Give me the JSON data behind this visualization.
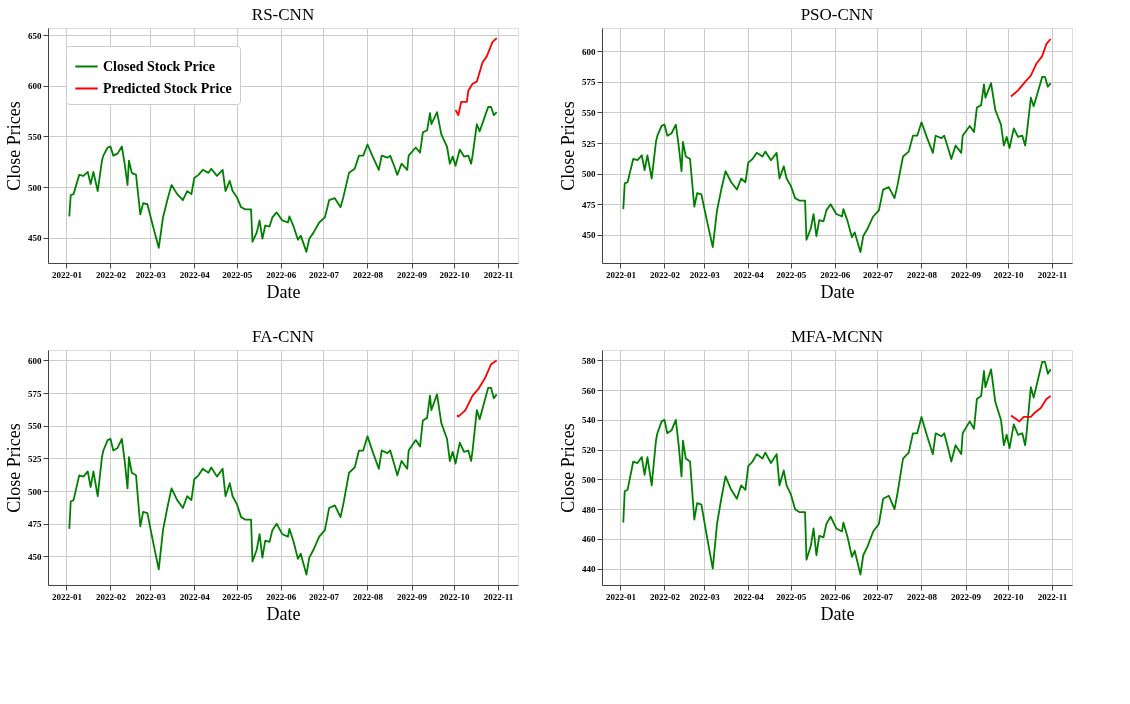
{
  "chart_data": [
    {
      "type": "line",
      "title": "RS-CNN",
      "xlabel": "Date",
      "ylabel": "Close Prices",
      "grid": true,
      "legend": "top left",
      "xlim": [
        "2021-12-19",
        "2022-11-15"
      ],
      "xticks": [
        "2022-01",
        "2022-02",
        "2022-03",
        "2022-04",
        "2022-05",
        "2022-06",
        "2022-07",
        "2022-08",
        "2022-09",
        "2022-10",
        "2022-11"
      ],
      "ylim": [
        425,
        657
      ],
      "yticks": [
        450,
        500,
        550,
        600,
        650
      ],
      "x": [
        "2022-01-03",
        "2022-01-04",
        "2022-01-06",
        "2022-01-10",
        "2022-01-13",
        "2022-01-16",
        "2022-01-18",
        "2022-01-20",
        "2022-01-23",
        "2022-01-26",
        "2022-01-27",
        "2022-01-30",
        "2022-02-01",
        "2022-02-03",
        "2022-02-06",
        "2022-02-09",
        "2022-02-11",
        "2022-02-13",
        "2022-02-14",
        "2022-02-16",
        "2022-02-19",
        "2022-02-22",
        "2022-02-24",
        "2022-02-27",
        "2022-03-03",
        "2022-03-07",
        "2022-03-10",
        "2022-03-13",
        "2022-03-16",
        "2022-03-20",
        "2022-03-24",
        "2022-03-27",
        "2022-03-30",
        "2022-04-01",
        "2022-04-04",
        "2022-04-07",
        "2022-04-11",
        "2022-04-13",
        "2022-04-17",
        "2022-04-21",
        "2022-04-23",
        "2022-04-26",
        "2022-04-28",
        "2022-05-01",
        "2022-05-04",
        "2022-05-07",
        "2022-05-11",
        "2022-05-12",
        "2022-05-15",
        "2022-05-17",
        "2022-05-19",
        "2022-05-21",
        "2022-05-24",
        "2022-05-26",
        "2022-05-29",
        "2022-06-02",
        "2022-06-06",
        "2022-06-07",
        "2022-06-10",
        "2022-06-13",
        "2022-06-15",
        "2022-06-19",
        "2022-06-21",
        "2022-06-24",
        "2022-06-28",
        "2022-07-02",
        "2022-07-05",
        "2022-07-09",
        "2022-07-13",
        "2022-07-15",
        "2022-07-19",
        "2022-07-23",
        "2022-07-26",
        "2022-07-29",
        "2022-08-01",
        "2022-08-05",
        "2022-08-09",
        "2022-08-11",
        "2022-08-15",
        "2022-08-17",
        "2022-08-20",
        "2022-08-22",
        "2022-08-25",
        "2022-08-29",
        "2022-08-30",
        "2022-09-04",
        "2022-09-07",
        "2022-09-09",
        "2022-09-12",
        "2022-09-14",
        "2022-09-15",
        "2022-09-19",
        "2022-09-22",
        "2022-09-26",
        "2022-09-28",
        "2022-09-30",
        "2022-10-02",
        "2022-10-05",
        "2022-10-08",
        "2022-10-11",
        "2022-10-13",
        "2022-10-14",
        "2022-10-17",
        "2022-10-19",
        "2022-10-22",
        "2022-10-25",
        "2022-10-27",
        "2022-10-29",
        "2022-10-31"
      ],
      "series": [
        {
          "name": "Closed Stock Price",
          "color": "#008000",
          "values": [
            471,
            492,
            493,
            512,
            511,
            515,
            503,
            515,
            496,
            526,
            531,
            539,
            540,
            531,
            533,
            540,
            523,
            502,
            526,
            514,
            512,
            473,
            484,
            483,
            461,
            440,
            470,
            487,
            502,
            493,
            487,
            496,
            493,
            509,
            512,
            517,
            514,
            518,
            511,
            517,
            496,
            506,
            496,
            490,
            480,
            478,
            478,
            446,
            455,
            467,
            449,
            462,
            461,
            470,
            475,
            467,
            465,
            471,
            461,
            448,
            452,
            436,
            449,
            455,
            465,
            470,
            487,
            489,
            480,
            490,
            514,
            518,
            531,
            531,
            542,
            529,
            517,
            531,
            529,
            531,
            520,
            512,
            523,
            517,
            531,
            539,
            534,
            554,
            556,
            573,
            562,
            574,
            552,
            540,
            523,
            530,
            521,
            537,
            530,
            531,
            523,
            531,
            562,
            555,
            567,
            579,
            579,
            571,
            574
          ]
        },
        {
          "name": "Predicted Stock Price",
          "color": "#ff0000",
          "x": [
            "2022-10-02",
            "2022-10-04",
            "2022-10-06",
            "2022-10-10",
            "2022-10-11",
            "2022-10-14",
            "2022-10-17",
            "2022-10-21",
            "2022-10-24",
            "2022-10-28",
            "2022-10-31"
          ],
          "values": [
            576,
            571,
            584,
            584,
            595,
            602,
            604,
            623,
            629,
            643,
            647
          ]
        }
      ]
    },
    {
      "type": "line",
      "title": "PSO-CNN",
      "xlabel": "Date",
      "ylabel": "Close Prices",
      "grid": true,
      "xlim": [
        "2021-12-19",
        "2022-11-15"
      ],
      "xticks": [
        "2022-01",
        "2022-02",
        "2022-03",
        "2022-04",
        "2022-05",
        "2022-06",
        "2022-07",
        "2022-08",
        "2022-09",
        "2022-10",
        "2022-11"
      ],
      "ylim": [
        427,
        619
      ],
      "yticks": [
        450,
        475,
        500,
        525,
        550,
        575,
        600
      ],
      "x": [
        "2022-01-03",
        "2022-01-04",
        "2022-01-06",
        "2022-01-10",
        "2022-01-13",
        "2022-01-16",
        "2022-01-18",
        "2022-01-20",
        "2022-01-23",
        "2022-01-26",
        "2022-01-27",
        "2022-01-30",
        "2022-02-01",
        "2022-02-03",
        "2022-02-06",
        "2022-02-09",
        "2022-02-11",
        "2022-02-13",
        "2022-02-14",
        "2022-02-16",
        "2022-02-19",
        "2022-02-22",
        "2022-02-24",
        "2022-02-27",
        "2022-03-03",
        "2022-03-07",
        "2022-03-10",
        "2022-03-13",
        "2022-03-16",
        "2022-03-20",
        "2022-03-24",
        "2022-03-27",
        "2022-03-30",
        "2022-04-01",
        "2022-04-04",
        "2022-04-07",
        "2022-04-11",
        "2022-04-13",
        "2022-04-17",
        "2022-04-21",
        "2022-04-23",
        "2022-04-26",
        "2022-04-28",
        "2022-05-01",
        "2022-05-04",
        "2022-05-07",
        "2022-05-11",
        "2022-05-12",
        "2022-05-15",
        "2022-05-17",
        "2022-05-19",
        "2022-05-21",
        "2022-05-24",
        "2022-05-26",
        "2022-05-29",
        "2022-06-02",
        "2022-06-06",
        "2022-06-07",
        "2022-06-10",
        "2022-06-13",
        "2022-06-15",
        "2022-06-19",
        "2022-06-21",
        "2022-06-24",
        "2022-06-28",
        "2022-07-02",
        "2022-07-05",
        "2022-07-09",
        "2022-07-13",
        "2022-07-15",
        "2022-07-19",
        "2022-07-23",
        "2022-07-26",
        "2022-07-29",
        "2022-08-01",
        "2022-08-05",
        "2022-08-09",
        "2022-08-11",
        "2022-08-15",
        "2022-08-17",
        "2022-08-20",
        "2022-08-22",
        "2022-08-25",
        "2022-08-29",
        "2022-08-30",
        "2022-09-04",
        "2022-09-07",
        "2022-09-09",
        "2022-09-12",
        "2022-09-14",
        "2022-09-15",
        "2022-09-19",
        "2022-09-22",
        "2022-09-26",
        "2022-09-28",
        "2022-09-30",
        "2022-10-02",
        "2022-10-05",
        "2022-10-08",
        "2022-10-11",
        "2022-10-13",
        "2022-10-14",
        "2022-10-17",
        "2022-10-19",
        "2022-10-22",
        "2022-10-25",
        "2022-10-27",
        "2022-10-29",
        "2022-10-31"
      ],
      "series": [
        {
          "color": "#008000",
          "values": [
            471,
            492,
            493,
            512,
            511,
            515,
            503,
            515,
            496,
            526,
            531,
            539,
            540,
            531,
            533,
            540,
            523,
            502,
            526,
            514,
            512,
            473,
            484,
            483,
            461,
            440,
            470,
            487,
            502,
            493,
            487,
            496,
            493,
            509,
            512,
            517,
            514,
            518,
            511,
            517,
            496,
            506,
            496,
            490,
            480,
            478,
            478,
            446,
            455,
            467,
            449,
            462,
            461,
            470,
            475,
            467,
            465,
            471,
            461,
            448,
            452,
            436,
            449,
            455,
            465,
            470,
            487,
            489,
            480,
            490,
            514,
            518,
            531,
            531,
            542,
            529,
            517,
            531,
            529,
            531,
            520,
            512,
            523,
            517,
            531,
            539,
            534,
            554,
            556,
            573,
            562,
            574,
            552,
            540,
            523,
            530,
            521,
            537,
            530,
            531,
            523,
            531,
            562,
            555,
            567,
            579,
            579,
            571,
            574
          ]
        },
        {
          "color": "#ff0000",
          "x": [
            "2022-10-03",
            "2022-10-08",
            "2022-10-13",
            "2022-10-17",
            "2022-10-21",
            "2022-10-25",
            "2022-10-28",
            "2022-10-31"
          ],
          "values": [
            563,
            568,
            575,
            580,
            590,
            596,
            606,
            610
          ]
        }
      ]
    },
    {
      "type": "line",
      "title": "FA-CNN",
      "xlabel": "Date",
      "ylabel": "Close Prices",
      "grid": true,
      "xlim": [
        "2021-12-19",
        "2022-11-15"
      ],
      "xticks": [
        "2022-01",
        "2022-02",
        "2022-03",
        "2022-04",
        "2022-05",
        "2022-06",
        "2022-07",
        "2022-08",
        "2022-09",
        "2022-10",
        "2022-11"
      ],
      "ylim": [
        428,
        608
      ],
      "yticks": [
        450,
        475,
        500,
        525,
        550,
        575,
        600
      ],
      "x": [
        "2022-01-03",
        "2022-01-04",
        "2022-01-06",
        "2022-01-10",
        "2022-01-13",
        "2022-01-16",
        "2022-01-18",
        "2022-01-20",
        "2022-01-23",
        "2022-01-26",
        "2022-01-27",
        "2022-01-30",
        "2022-02-01",
        "2022-02-03",
        "2022-02-06",
        "2022-02-09",
        "2022-02-11",
        "2022-02-13",
        "2022-02-14",
        "2022-02-16",
        "2022-02-19",
        "2022-02-22",
        "2022-02-24",
        "2022-02-27",
        "2022-03-03",
        "2022-03-07",
        "2022-03-10",
        "2022-03-13",
        "2022-03-16",
        "2022-03-20",
        "2022-03-24",
        "2022-03-27",
        "2022-03-30",
        "2022-04-01",
        "2022-04-04",
        "2022-04-07",
        "2022-04-11",
        "2022-04-13",
        "2022-04-17",
        "2022-04-21",
        "2022-04-23",
        "2022-04-26",
        "2022-04-28",
        "2022-05-01",
        "2022-05-04",
        "2022-05-07",
        "2022-05-11",
        "2022-05-12",
        "2022-05-15",
        "2022-05-17",
        "2022-05-19",
        "2022-05-21",
        "2022-05-24",
        "2022-05-26",
        "2022-05-29",
        "2022-06-02",
        "2022-06-06",
        "2022-06-07",
        "2022-06-10",
        "2022-06-13",
        "2022-06-15",
        "2022-06-19",
        "2022-06-21",
        "2022-06-24",
        "2022-06-28",
        "2022-07-02",
        "2022-07-05",
        "2022-07-09",
        "2022-07-13",
        "2022-07-15",
        "2022-07-19",
        "2022-07-23",
        "2022-07-26",
        "2022-07-29",
        "2022-08-01",
        "2022-08-05",
        "2022-08-09",
        "2022-08-11",
        "2022-08-15",
        "2022-08-17",
        "2022-08-20",
        "2022-08-22",
        "2022-08-25",
        "2022-08-29",
        "2022-08-30",
        "2022-09-04",
        "2022-09-07",
        "2022-09-09",
        "2022-09-12",
        "2022-09-14",
        "2022-09-15",
        "2022-09-19",
        "2022-09-22",
        "2022-09-26",
        "2022-09-28",
        "2022-09-30",
        "2022-10-02",
        "2022-10-05",
        "2022-10-08",
        "2022-10-11",
        "2022-10-13",
        "2022-10-14",
        "2022-10-17",
        "2022-10-19",
        "2022-10-22",
        "2022-10-25",
        "2022-10-27",
        "2022-10-29",
        "2022-10-31"
      ],
      "series": [
        {
          "color": "#008000",
          "values": [
            471,
            492,
            493,
            512,
            511,
            515,
            503,
            515,
            496,
            526,
            531,
            539,
            540,
            531,
            533,
            540,
            523,
            502,
            526,
            514,
            512,
            473,
            484,
            483,
            461,
            440,
            470,
            487,
            502,
            493,
            487,
            496,
            493,
            509,
            512,
            517,
            514,
            518,
            511,
            517,
            496,
            506,
            496,
            490,
            480,
            478,
            478,
            446,
            455,
            467,
            449,
            462,
            461,
            470,
            475,
            467,
            465,
            471,
            461,
            448,
            452,
            436,
            449,
            455,
            465,
            470,
            487,
            489,
            480,
            490,
            514,
            518,
            531,
            531,
            542,
            529,
            517,
            531,
            529,
            531,
            520,
            512,
            523,
            517,
            531,
            539,
            534,
            554,
            556,
            573,
            562,
            574,
            552,
            540,
            523,
            530,
            521,
            537,
            530,
            531,
            523,
            531,
            562,
            555,
            567,
            579,
            579,
            571,
            574
          ]
        },
        {
          "color": "#ff0000",
          "x": [
            "2022-10-03",
            "2022-10-04",
            "2022-10-09",
            "2022-10-14",
            "2022-10-18",
            "2022-10-23",
            "2022-10-27",
            "2022-10-31"
          ],
          "values": [
            558,
            557,
            562,
            573,
            578,
            587,
            597,
            600
          ]
        }
      ]
    },
    {
      "type": "line",
      "title": "MFA-MCNN",
      "xlabel": "Date",
      "ylabel": "Close Prices",
      "grid": true,
      "xlim": [
        "2021-12-19",
        "2022-11-15"
      ],
      "xticks": [
        "2022-01",
        "2022-02",
        "2022-03",
        "2022-04",
        "2022-05",
        "2022-06",
        "2022-07",
        "2022-08",
        "2022-09",
        "2022-10",
        "2022-11"
      ],
      "ylim": [
        429,
        587
      ],
      "yticks": [
        440,
        460,
        480,
        500,
        520,
        540,
        560,
        580
      ],
      "x": [
        "2022-01-03",
        "2022-01-04",
        "2022-01-06",
        "2022-01-10",
        "2022-01-13",
        "2022-01-16",
        "2022-01-18",
        "2022-01-20",
        "2022-01-23",
        "2022-01-26",
        "2022-01-27",
        "2022-01-30",
        "2022-02-01",
        "2022-02-03",
        "2022-02-06",
        "2022-02-09",
        "2022-02-11",
        "2022-02-13",
        "2022-02-14",
        "2022-02-16",
        "2022-02-19",
        "2022-02-22",
        "2022-02-24",
        "2022-02-27",
        "2022-03-03",
        "2022-03-07",
        "2022-03-10",
        "2022-03-13",
        "2022-03-16",
        "2022-03-20",
        "2022-03-24",
        "2022-03-27",
        "2022-03-30",
        "2022-04-01",
        "2022-04-04",
        "2022-04-07",
        "2022-04-11",
        "2022-04-13",
        "2022-04-17",
        "2022-04-21",
        "2022-04-23",
        "2022-04-26",
        "2022-04-28",
        "2022-05-01",
        "2022-05-04",
        "2022-05-07",
        "2022-05-11",
        "2022-05-12",
        "2022-05-15",
        "2022-05-17",
        "2022-05-19",
        "2022-05-21",
        "2022-05-24",
        "2022-05-26",
        "2022-05-29",
        "2022-06-02",
        "2022-06-06",
        "2022-06-07",
        "2022-06-10",
        "2022-06-13",
        "2022-06-15",
        "2022-06-19",
        "2022-06-21",
        "2022-06-24",
        "2022-06-28",
        "2022-07-02",
        "2022-07-05",
        "2022-07-09",
        "2022-07-13",
        "2022-07-15",
        "2022-07-19",
        "2022-07-23",
        "2022-07-26",
        "2022-07-29",
        "2022-08-01",
        "2022-08-05",
        "2022-08-09",
        "2022-08-11",
        "2022-08-15",
        "2022-08-17",
        "2022-08-20",
        "2022-08-22",
        "2022-08-25",
        "2022-08-29",
        "2022-08-30",
        "2022-09-04",
        "2022-09-07",
        "2022-09-09",
        "2022-09-12",
        "2022-09-14",
        "2022-09-15",
        "2022-09-19",
        "2022-09-22",
        "2022-09-26",
        "2022-09-28",
        "2022-09-30",
        "2022-10-02",
        "2022-10-05",
        "2022-10-08",
        "2022-10-11",
        "2022-10-13",
        "2022-10-14",
        "2022-10-17",
        "2022-10-19",
        "2022-10-22",
        "2022-10-25",
        "2022-10-27",
        "2022-10-29",
        "2022-10-31"
      ],
      "series": [
        {
          "color": "#008000",
          "values": [
            471,
            492,
            493,
            512,
            511,
            515,
            503,
            515,
            496,
            526,
            531,
            539,
            540,
            531,
            533,
            540,
            523,
            502,
            526,
            514,
            512,
            473,
            484,
            483,
            461,
            440,
            470,
            487,
            502,
            493,
            487,
            496,
            493,
            509,
            512,
            517,
            514,
            518,
            511,
            517,
            496,
            506,
            496,
            490,
            480,
            478,
            478,
            446,
            455,
            467,
            449,
            462,
            461,
            470,
            475,
            467,
            465,
            471,
            461,
            448,
            452,
            436,
            449,
            455,
            465,
            470,
            487,
            489,
            480,
            490,
            514,
            518,
            531,
            531,
            542,
            529,
            517,
            531,
            529,
            531,
            520,
            512,
            523,
            517,
            531,
            539,
            534,
            554,
            556,
            573,
            562,
            574,
            552,
            540,
            523,
            530,
            521,
            537,
            530,
            531,
            523,
            531,
            562,
            555,
            567,
            579,
            579,
            571,
            574
          ]
        },
        {
          "color": "#ff0000",
          "x": [
            "2022-10-03",
            "2022-10-09",
            "2022-10-12",
            "2022-10-17",
            "2022-10-20",
            "2022-10-24",
            "2022-10-28",
            "2022-10-31"
          ],
          "values": [
            543,
            539,
            542,
            542,
            545,
            548,
            554,
            556
          ]
        }
      ]
    }
  ]
}
